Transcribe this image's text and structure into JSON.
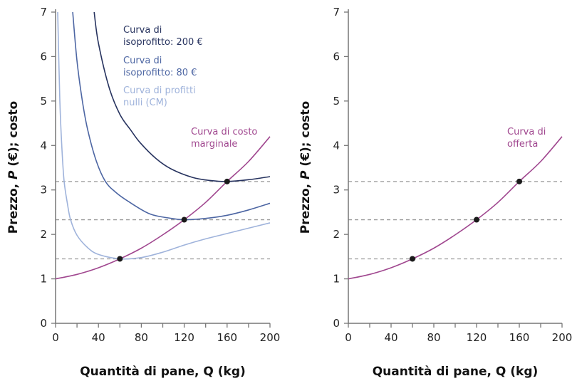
{
  "chart_data": [
    {
      "type": "line",
      "xlabel": "Quantità di pane, Q (kg)",
      "xlabel_parts": {
        "pre": "Quantità di pane, ",
        "var": "Q",
        "post": " (kg)"
      },
      "ylabel_parts": {
        "pre": "Prezzo, ",
        "var": "P",
        "post": " (€); costo"
      },
      "xlim": [
        0,
        200
      ],
      "ylim": [
        0,
        7
      ],
      "xticks": [
        0,
        40,
        80,
        120,
        160,
        200
      ],
      "yticks": [
        0,
        1,
        2,
        3,
        4,
        5,
        6,
        7
      ],
      "grid": false,
      "series": [
        {
          "name": "Curva di isoprofitto: 200 €",
          "label_lines": [
            "Curva di",
            "isoprofitto: 200 €"
          ],
          "color": "#27335f",
          "points": [
            [
              36,
              7
            ],
            [
              40,
              6.3
            ],
            [
              50,
              5.3
            ],
            [
              60,
              4.7
            ],
            [
              70,
              4.35
            ],
            [
              79,
              4.06
            ],
            [
              94,
              3.7
            ],
            [
              108,
              3.47
            ],
            [
              128,
              3.28
            ],
            [
              145,
              3.21
            ],
            [
              160,
              3.19
            ],
            [
              180,
              3.23
            ],
            [
              200,
              3.3
            ]
          ]
        },
        {
          "name": "Curva di isoprofitto: 80 €",
          "label_lines": [
            "Curva di",
            "isoprofitto: 80 €"
          ],
          "color": "#4d66a3",
          "points": [
            [
              16,
              7
            ],
            [
              20,
              5.9
            ],
            [
              25,
              5.0
            ],
            [
              30,
              4.35
            ],
            [
              38,
              3.65
            ],
            [
              46.5,
              3.19
            ],
            [
              56,
              2.95
            ],
            [
              68,
              2.74
            ],
            [
              88,
              2.46
            ],
            [
              108,
              2.36
            ],
            [
              120,
              2.33
            ],
            [
              140,
              2.36
            ],
            [
              160,
              2.43
            ],
            [
              180,
              2.55
            ],
            [
              200,
              2.7
            ]
          ]
        },
        {
          "name": "Curva di profitti nulli (CM)",
          "label_lines": [
            "Curva di profitti",
            "nulli (CM)"
          ],
          "color": "#9fb3db",
          "points": [
            [
              2,
              7
            ],
            [
              4,
              5
            ],
            [
              6,
              3.9
            ],
            [
              8,
              3.19
            ],
            [
              11,
              2.7
            ],
            [
              14,
              2.33
            ],
            [
              20,
              1.98
            ],
            [
              30,
              1.7
            ],
            [
              40,
              1.55
            ],
            [
              60,
              1.45
            ],
            [
              80,
              1.48
            ],
            [
              100,
              1.6
            ],
            [
              120,
              1.76
            ],
            [
              140,
              1.9
            ],
            [
              160,
              2.02
            ],
            [
              180,
              2.14
            ],
            [
              200,
              2.26
            ]
          ]
        },
        {
          "name": "Curva di costo marginale",
          "label_lines": [
            "Curva di costo",
            "marginale"
          ],
          "color": "#a0478f",
          "points": [
            [
              0,
              1
            ],
            [
              20,
              1.1
            ],
            [
              40,
              1.25
            ],
            [
              60,
              1.45
            ],
            [
              80,
              1.69
            ],
            [
              100,
              1.99
            ],
            [
              120,
              2.33
            ],
            [
              140,
              2.72
            ],
            [
              160,
              3.19
            ],
            [
              180,
              3.64
            ],
            [
              200,
              4.2
            ]
          ]
        }
      ],
      "reference_lines_y": [
        1.45,
        2.33,
        3.19
      ],
      "highlight_points": [
        [
          60,
          1.45
        ],
        [
          120,
          2.33
        ],
        [
          160,
          3.19
        ]
      ]
    },
    {
      "type": "line",
      "xlabel": "Quantità di pane, Q (kg)",
      "xlabel_parts": {
        "pre": "Quantità di pane, ",
        "var": "Q",
        "post": " (kg)"
      },
      "ylabel_parts": {
        "pre": "Prezzo, ",
        "var": "P",
        "post": " (€); costo"
      },
      "xlim": [
        0,
        200
      ],
      "ylim": [
        0,
        7
      ],
      "xticks": [
        0,
        40,
        80,
        120,
        160,
        200
      ],
      "yticks": [
        0,
        1,
        2,
        3,
        4,
        5,
        6,
        7
      ],
      "grid": false,
      "series": [
        {
          "name": "Curva di offerta",
          "label_lines": [
            "Curva di",
            "offerta"
          ],
          "color": "#a0478f",
          "points": [
            [
              0,
              1
            ],
            [
              20,
              1.1
            ],
            [
              40,
              1.25
            ],
            [
              60,
              1.45
            ],
            [
              80,
              1.69
            ],
            [
              100,
              1.99
            ],
            [
              120,
              2.33
            ],
            [
              140,
              2.72
            ],
            [
              160,
              3.19
            ],
            [
              180,
              3.64
            ],
            [
              200,
              4.2
            ]
          ]
        }
      ],
      "reference_lines_y": [
        1.45,
        2.33,
        3.19
      ],
      "highlight_points": [
        [
          60,
          1.45
        ],
        [
          120,
          2.33
        ],
        [
          160,
          3.19
        ]
      ]
    }
  ],
  "colors": {
    "axis": "#777777",
    "reference_line": "#999999",
    "point": "#1a1a1a"
  }
}
